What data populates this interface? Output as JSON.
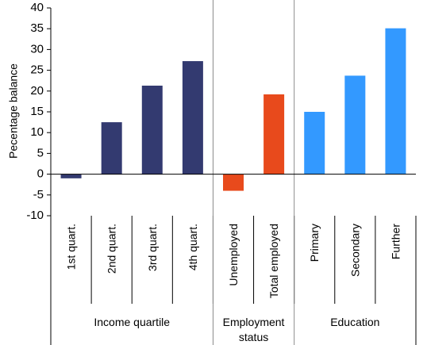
{
  "chart_data": {
    "type": "bar",
    "title": "",
    "ylabel": "Pecentage balance",
    "xlabel": "",
    "ylim": [
      -10,
      40
    ],
    "yticks": [
      40,
      35,
      30,
      25,
      20,
      15,
      10,
      5,
      0,
      -5,
      -10
    ],
    "grid": false,
    "legend": "none",
    "categories": [
      "1st quart.",
      "2nd quart.",
      "3rd quart.",
      "4th quart.",
      "Unemployed",
      "Total employed",
      "Primary",
      "Secondary",
      "Further"
    ],
    "values": [
      -1,
      12.5,
      21.3,
      27.2,
      -4,
      19.2,
      15,
      23.7,
      35.1
    ],
    "bar_colors": [
      "#333a70",
      "#333a70",
      "#333a70",
      "#333a70",
      "#e84a1c",
      "#e84a1c",
      "#3399ff",
      "#3399ff",
      "#3399ff"
    ],
    "groups": [
      {
        "label_lines": [
          "Income quartile"
        ],
        "count": 4
      },
      {
        "label_lines": [
          "Employment",
          "status"
        ],
        "count": 2
      },
      {
        "label_lines": [
          "Education"
        ],
        "count": 3
      }
    ]
  }
}
